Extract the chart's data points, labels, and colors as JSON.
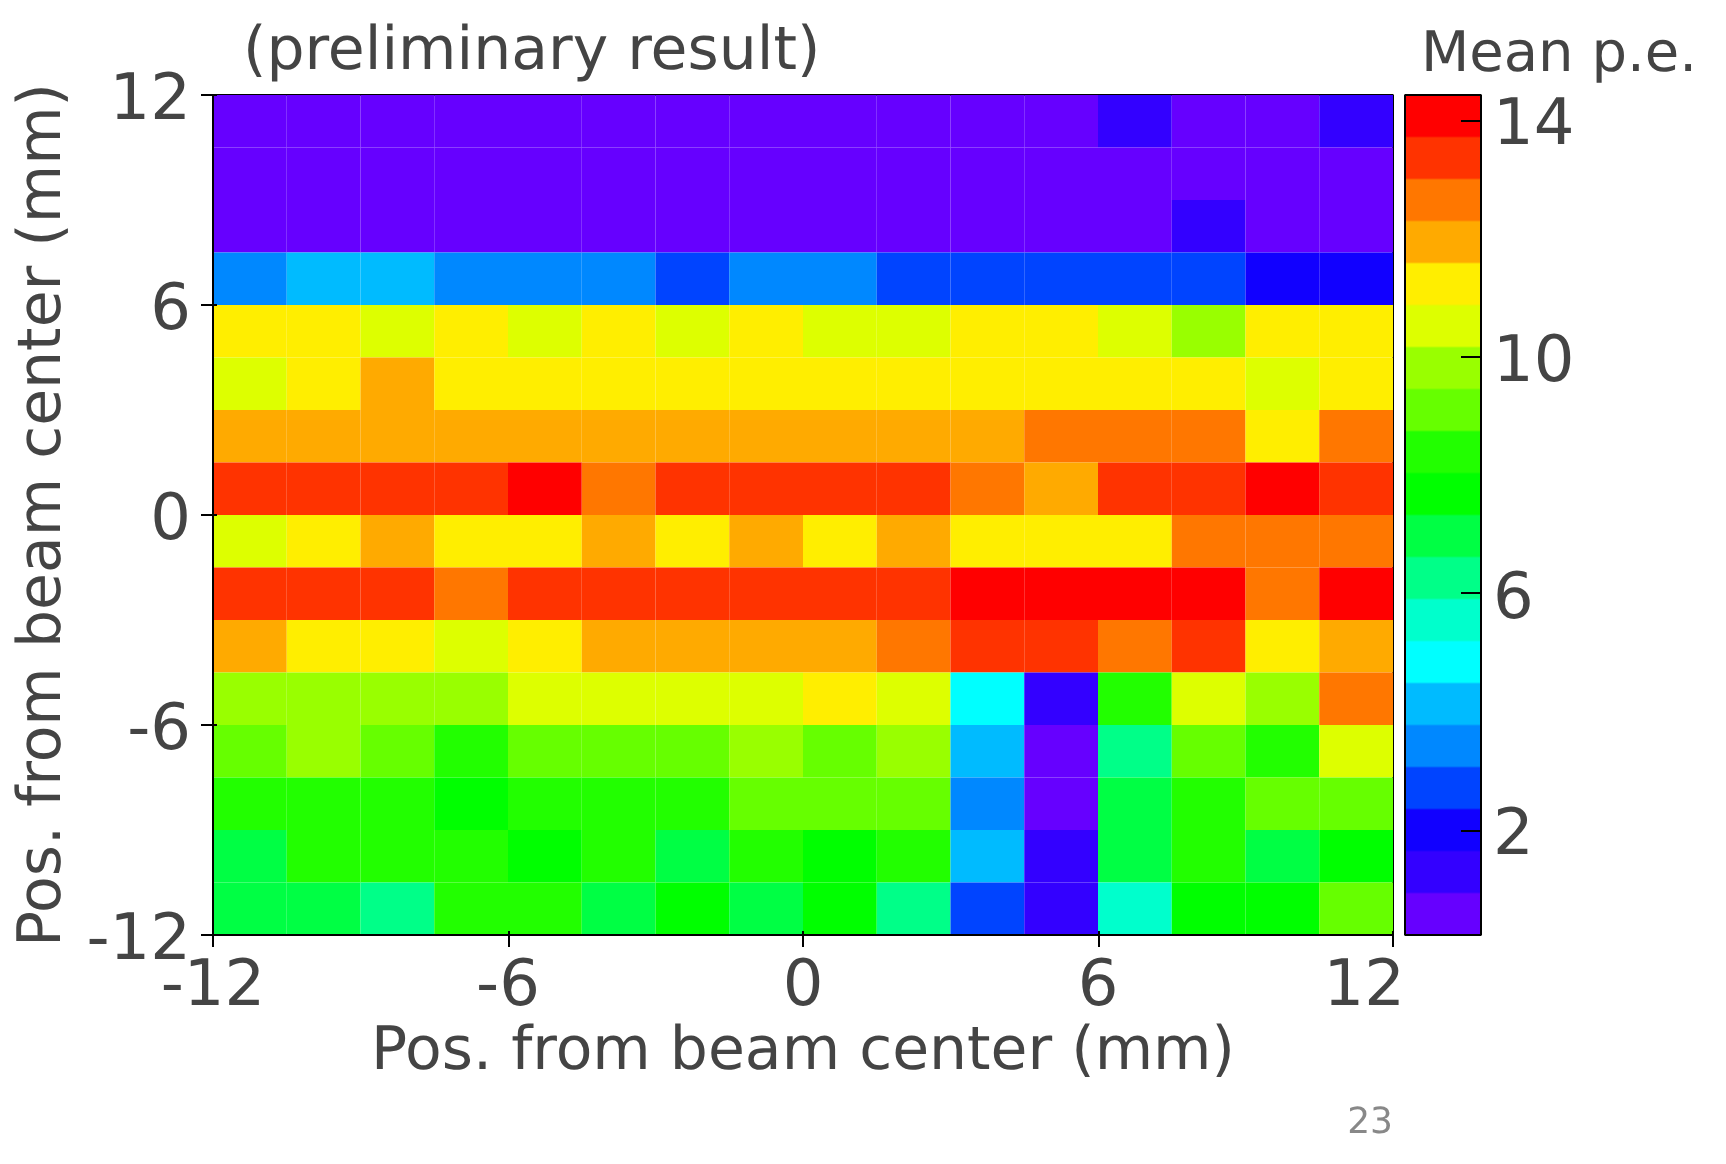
{
  "chart_data": {
    "type": "heatmap",
    "title": "(preliminary result)",
    "xlabel": "Pos. from beam center (mm)",
    "ylabel": "Pos. from beam center (mm)",
    "clabel": "Mean p.e.",
    "annotations": [
      "23"
    ],
    "x": [
      -11.25,
      -9.75,
      -8.25,
      -6.75,
      -5.25,
      -3.75,
      -2.25,
      -0.75,
      0.75,
      2.25,
      3.75,
      5.25,
      6.75,
      8.25,
      9.75,
      11.25
    ],
    "y": [
      11.25,
      9.75,
      8.25,
      6.75,
      5.25,
      3.75,
      2.25,
      0.75,
      -0.75,
      -2.25,
      -3.75,
      -5.25,
      -6.75,
      -8.25,
      -9.75,
      -11.25
    ],
    "xlim": [
      -12,
      12
    ],
    "ylim": [
      -12,
      12
    ],
    "xticks": [
      -12,
      -6,
      0,
      6,
      12
    ],
    "yticks": [
      -12,
      -6,
      0,
      6,
      12
    ],
    "clim": [
      0.23,
      14.43
    ],
    "cticks": [
      2,
      6,
      10,
      14
    ],
    "colors": [
      "#6600ff",
      "#3300ff",
      "#1100ff",
      "#0044ff",
      "#0088ff",
      "#00bbff",
      "#00ffff",
      "#00ffcc",
      "#00ff88",
      "#00ff44",
      "#00ff00",
      "#22ff00",
      "#66ff00",
      "#99ff00",
      "#ddff00",
      "#ffee00",
      "#ffaa00",
      "#ff7700",
      "#ff3300",
      "#ff0000"
    ],
    "cells": [
      [
        0.6,
        0.6,
        0.6,
        0.6,
        0.6,
        0.6,
        0.6,
        0.6,
        0.6,
        0.6,
        0.6,
        0.6,
        1.3,
        0.6,
        0.6,
        1.3
      ],
      [
        0.6,
        0.6,
        0.6,
        0.6,
        0.6,
        0.6,
        0.6,
        0.6,
        0.6,
        0.6,
        0.6,
        0.6,
        0.6,
        0.6,
        0.6,
        0.6
      ],
      [
        0.6,
        0.6,
        0.6,
        0.6,
        0.6,
        0.6,
        0.6,
        0.6,
        0.6,
        0.6,
        0.6,
        0.6,
        0.6,
        1.3,
        0.6,
        0.6
      ],
      [
        3.4,
        4.1,
        4.1,
        3.4,
        3.4,
        3.4,
        2.7,
        3.4,
        3.4,
        2.7,
        2.7,
        2.7,
        2.7,
        2.7,
        2.0,
        2.0
      ],
      [
        11.2,
        11.2,
        10.5,
        11.2,
        10.5,
        11.2,
        10.5,
        11.2,
        10.5,
        10.5,
        11.2,
        11.2,
        10.5,
        9.8,
        11.2,
        11.2
      ],
      [
        10.5,
        11.2,
        11.9,
        11.2,
        11.2,
        11.2,
        11.2,
        11.2,
        11.2,
        11.2,
        11.2,
        11.2,
        11.2,
        11.2,
        10.5,
        11.2
      ],
      [
        11.9,
        11.9,
        11.9,
        11.9,
        11.9,
        11.9,
        11.9,
        11.9,
        11.9,
        11.9,
        11.9,
        12.7,
        12.7,
        12.7,
        11.2,
        12.7
      ],
      [
        13.4,
        13.4,
        13.4,
        13.4,
        14.1,
        12.7,
        13.4,
        13.4,
        13.4,
        13.4,
        12.7,
        11.9,
        13.4,
        13.4,
        14.1,
        13.4
      ],
      [
        10.5,
        11.2,
        11.9,
        11.2,
        11.2,
        11.9,
        11.2,
        11.9,
        11.2,
        11.9,
        11.2,
        11.2,
        11.2,
        12.7,
        12.7,
        12.7
      ],
      [
        13.4,
        13.4,
        13.4,
        12.7,
        13.4,
        13.4,
        13.4,
        13.4,
        13.4,
        13.4,
        14.1,
        14.1,
        14.1,
        14.1,
        12.7,
        14.1
      ],
      [
        11.9,
        11.2,
        11.2,
        10.5,
        11.2,
        11.9,
        11.9,
        11.9,
        11.9,
        12.7,
        13.4,
        13.4,
        12.7,
        13.4,
        11.2,
        11.9
      ],
      [
        9.8,
        9.8,
        9.8,
        9.8,
        10.5,
        10.5,
        10.5,
        10.5,
        11.2,
        10.5,
        4.8,
        1.3,
        8.4,
        10.5,
        9.8,
        12.7
      ],
      [
        9.1,
        9.8,
        9.1,
        8.4,
        9.1,
        9.1,
        9.1,
        9.8,
        9.1,
        9.8,
        4.1,
        0.6,
        6.3,
        9.1,
        8.4,
        10.5
      ],
      [
        8.4,
        8.4,
        8.4,
        7.7,
        8.4,
        8.4,
        8.4,
        9.1,
        9.1,
        9.1,
        3.4,
        0.6,
        7.0,
        8.4,
        9.1,
        9.1
      ],
      [
        7.0,
        8.4,
        8.4,
        8.4,
        7.7,
        8.4,
        7.0,
        8.4,
        7.7,
        8.4,
        4.1,
        1.3,
        7.0,
        8.4,
        7.0,
        7.7
      ],
      [
        7.0,
        7.0,
        6.3,
        8.4,
        8.4,
        7.0,
        7.7,
        7.0,
        7.7,
        6.3,
        2.7,
        1.3,
        5.6,
        7.7,
        7.7,
        9.1
      ]
    ]
  }
}
